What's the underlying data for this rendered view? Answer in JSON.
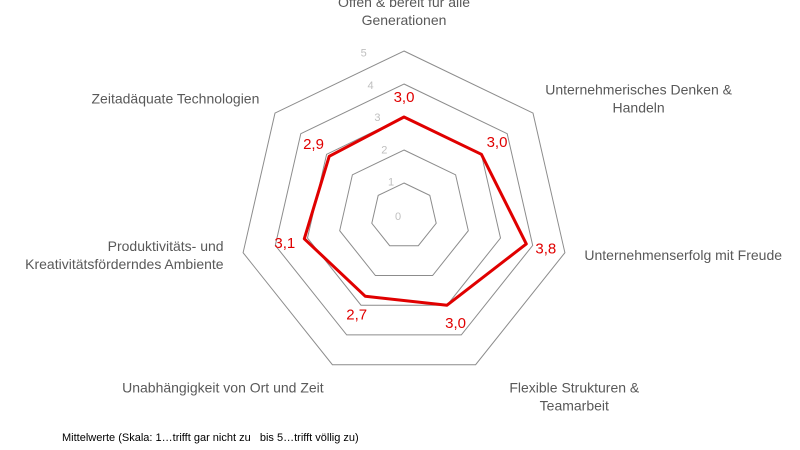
{
  "chart_data": {
    "type": "radar",
    "categories": [
      [
        "Offen & bereit für alle",
        "Generationen"
      ],
      [
        "Unternehmerisches Denken &",
        "Handeln"
      ],
      [
        "Unternehmenserfolg mit Freude"
      ],
      [
        "Flexible Strukturen &",
        "Teamarbeit"
      ],
      [
        "Unabhängigkeit von Ort und Zeit"
      ],
      [
        "Produktivitäts- und",
        "Kreativitätsförderndes Ambiente"
      ],
      [
        "Zeitadäquate Technologien"
      ]
    ],
    "values": [
      3.0,
      3.0,
      3.8,
      3.0,
      2.7,
      3.1,
      2.9
    ],
    "value_labels": [
      "3,0",
      "3,0",
      "3,8",
      "3,0",
      "2,7",
      "3,1",
      "2,9"
    ],
    "rlim": [
      0,
      5
    ],
    "ticks": [
      "0",
      "1",
      "2",
      "3",
      "4",
      "5"
    ],
    "series_color": "#e00000",
    "grid_color": "#8c8c8c",
    "footnote": "Mittelwerte (Skala: 1…trifft gar nicht zu   bis 5…trifft völlig zu)"
  }
}
